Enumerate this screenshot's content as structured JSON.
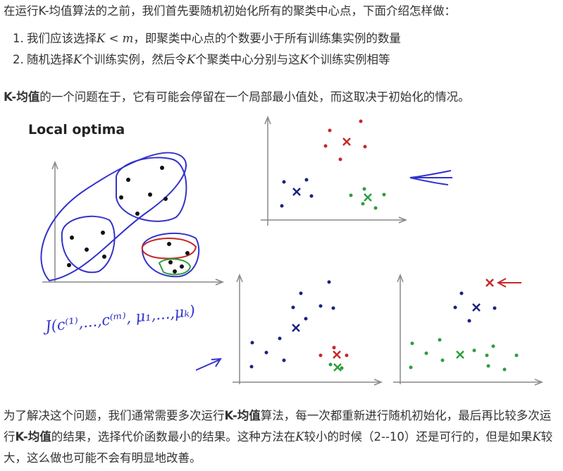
{
  "intro": "在运行K-均值算法的之前，我们首先要随机初始化所有的聚类中心点，下面介绍怎样做：",
  "steps": [
    {
      "num": "1.",
      "pre": "我们应该选择",
      "math_k": "K",
      "math_lt": " < ",
      "math_m": "m",
      "post": "，即聚类中心点的个数要小于所有训练集实例的数量"
    },
    {
      "num": "2.",
      "pre": "随机选择",
      "math_k": "K",
      "mid1": "个训练实例，然后令",
      "math_k2": "K",
      "mid2": "个聚类中心分别与这",
      "math_k3": "K",
      "post": "个训练实例相等"
    }
  ],
  "problem": {
    "bold": "K-均值",
    "text": "的一个问题在于，它有可能会停留在一个局部最小值处，而这取决于初始化的情况。"
  },
  "figure": {
    "title": "Local optima",
    "formula": "J(c⁽¹⁾,...,c⁽ᵐ⁾, μ₁,...,μₖ)",
    "colors": {
      "blue": "#1a237e",
      "red": "#c62828",
      "green": "#2e9e3c",
      "pen": "#3333cc",
      "axis": "#888888"
    }
  },
  "solution": {
    "t1": "为了解决这个问题，我们通常需要多次运行",
    "b1": "K-均值",
    "t2": "算法，每一次都重新进行随机初始化，最后再比较多次运行",
    "b2": "K-均值",
    "t3": "的结果，选择代价函数最小的结果。这种方法在",
    "k": "K",
    "t4": "较小的时候（2--10）还是可行的，但是如果",
    "k2": "K",
    "t5": "较大，这么做也可能不会有明显地改善。"
  }
}
